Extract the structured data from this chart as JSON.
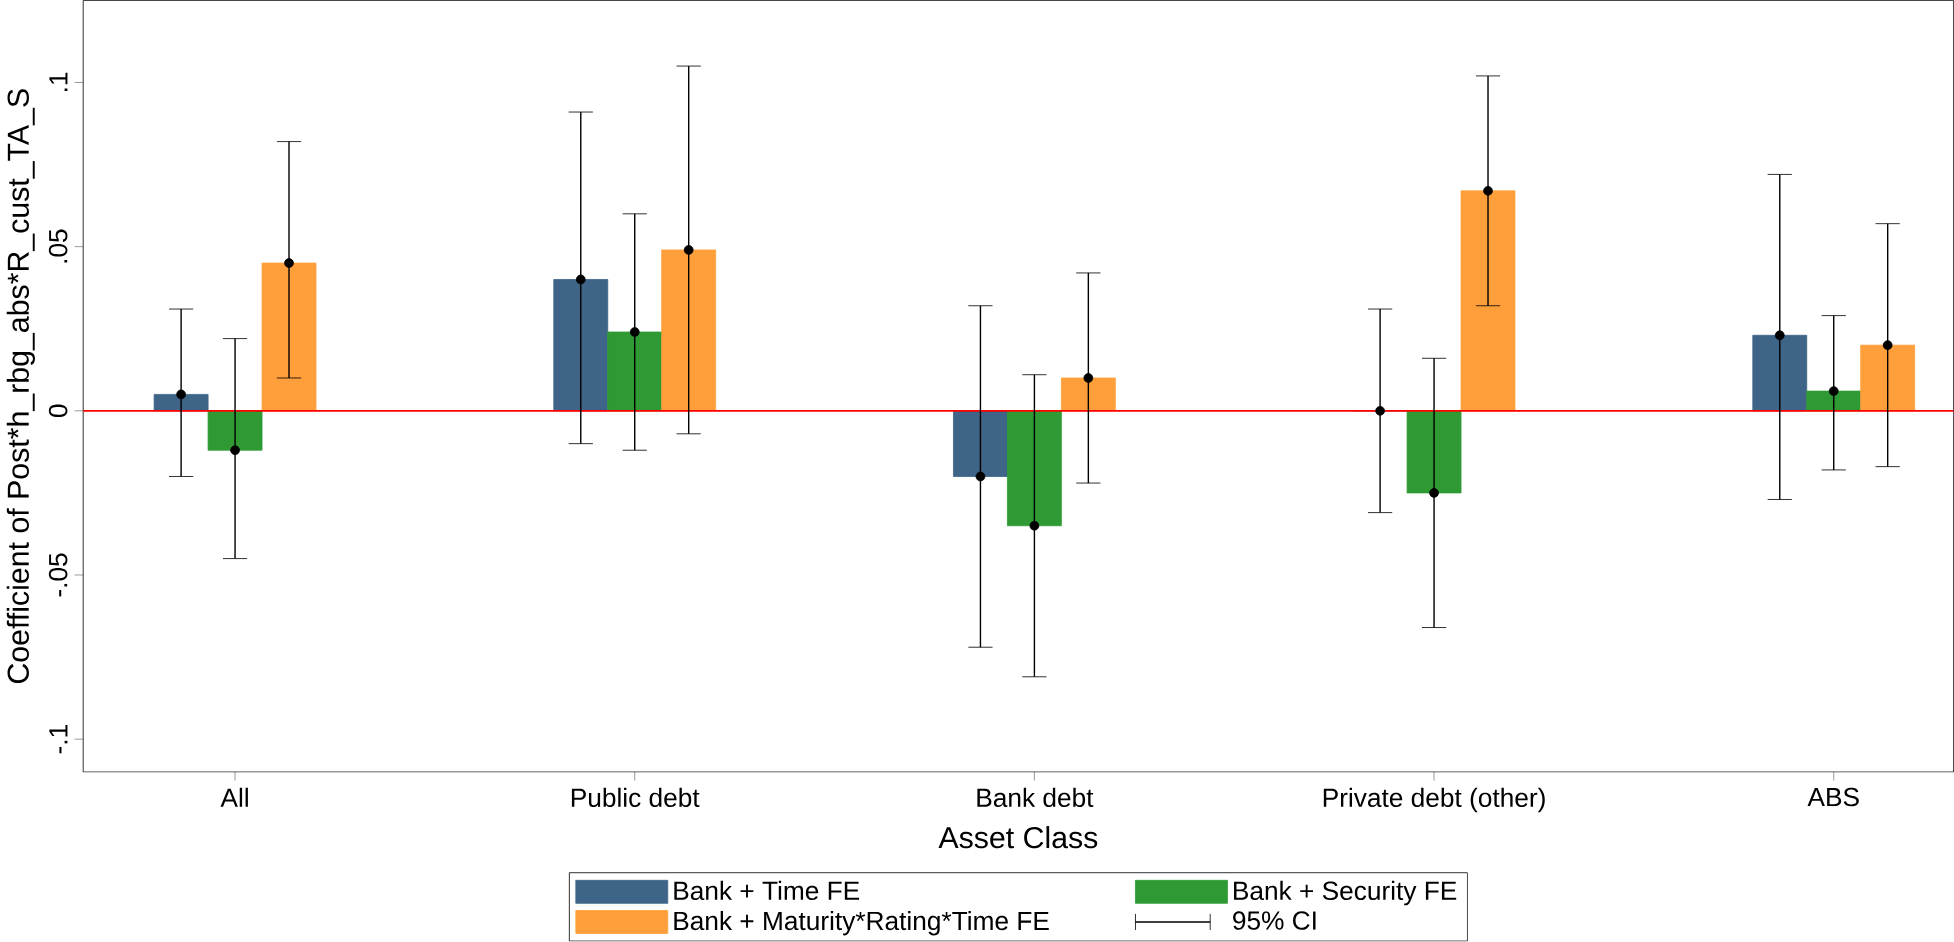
{
  "chart_data": {
    "type": "bar",
    "xlabel": "Asset Class",
    "ylabel": "Coefficient of Post*h_rbg_abs*R_cust_TA_S",
    "categories": [
      "All",
      "Public debt",
      "Bank debt",
      "Private debt (other)",
      "ABS"
    ],
    "series": [
      {
        "name": "Bank + Time FE",
        "color": "#3e6487",
        "values": [
          0.005,
          0.04,
          -0.02,
          0.0,
          0.023
        ]
      },
      {
        "name": "Bank + Security FE",
        "color": "#2f9a34",
        "values": [
          -0.012,
          0.024,
          -0.035,
          -0.025,
          0.006
        ]
      },
      {
        "name": "Bank + Maturity*Rating*Time FE",
        "color": "#ff9f3b",
        "values": [
          0.045,
          0.049,
          0.01,
          0.067,
          0.02
        ]
      },
      {
        "type": "scatter",
        "color": "#000000",
        "values": [
          0.005,
          0.04,
          -0.02,
          0.0,
          0.023
        ],
        "errors": [
          [
            -0.02,
            0.031
          ],
          [
            -0.01,
            0.091
          ],
          [
            -0.072,
            0.032
          ],
          [
            -0.031,
            0.031
          ],
          [
            -0.027,
            0.072
          ]
        ]
      },
      {
        "type": "scatter",
        "color": "#000000",
        "values": [
          -0.012,
          0.024,
          -0.035,
          -0.025,
          0.006
        ],
        "errors": [
          [
            -0.045,
            0.022
          ],
          [
            -0.012,
            0.06
          ],
          [
            -0.081,
            0.011
          ],
          [
            -0.066,
            0.016
          ],
          [
            -0.018,
            0.029
          ]
        ]
      },
      {
        "type": "scatter",
        "color": "#000000",
        "values": [
          0.045,
          0.049,
          0.01,
          0.067,
          0.02
        ],
        "errors": [
          [
            0.01,
            0.082
          ],
          [
            -0.007,
            0.105
          ],
          [
            -0.022,
            0.042
          ],
          [
            0.032,
            0.102
          ],
          [
            -0.017,
            0.057
          ]
        ]
      }
    ],
    "ylim": [
      -0.11,
      0.125
    ],
    "yticks": [
      {
        "value": -0.1,
        "label": "-.1"
      },
      {
        "value": -0.05,
        "label": "-.05"
      },
      {
        "value": 0,
        "label": "0"
      },
      {
        "value": 0.05,
        "label": ".05"
      },
      {
        "value": 0.1,
        "label": ".1"
      }
    ],
    "ref_lines": [
      {
        "axis": "y",
        "value": 0,
        "color": "#ff0000"
      }
    ],
    "annotations": [
      "95% CI"
    ],
    "legend": "bottom"
  }
}
